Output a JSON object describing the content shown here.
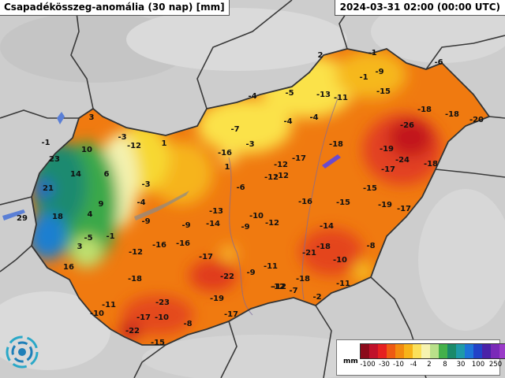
{
  "header": {
    "title": "Csapadékösszeg-anomália (30 nap) [mm]",
    "timestamp": "2024-03-31 02:00 (00:00 UTC)"
  },
  "colors": {
    "background": "#d0d0d0",
    "border": "#555555",
    "lake": "#5a7fd6"
  },
  "map_values": [
    {
      "v": "3"
    },
    {
      "v": "-1"
    },
    {
      "v": "-3"
    },
    {
      "v": "10"
    },
    {
      "v": "23"
    },
    {
      "v": "14"
    },
    {
      "v": "6"
    },
    {
      "v": "21"
    },
    {
      "v": "9"
    },
    {
      "v": "4"
    },
    {
      "v": "18"
    },
    {
      "v": "29"
    },
    {
      "v": "-5"
    },
    {
      "v": "-1"
    },
    {
      "v": "3"
    },
    {
      "v": "16"
    },
    {
      "v": "-12"
    },
    {
      "v": "1"
    },
    {
      "v": "-3"
    },
    {
      "v": "-4"
    },
    {
      "v": "-9"
    },
    {
      "v": "-12"
    },
    {
      "v": "-16"
    },
    {
      "v": "-16"
    },
    {
      "v": "-18"
    },
    {
      "v": "-11"
    },
    {
      "v": "-10"
    },
    {
      "v": "-23"
    },
    {
      "v": "-17"
    },
    {
      "v": "-10"
    },
    {
      "v": "-22"
    },
    {
      "v": "-15"
    },
    {
      "v": "-8"
    },
    {
      "v": "-17"
    },
    {
      "v": "-19"
    },
    {
      "v": "-22"
    },
    {
      "v": "-9"
    },
    {
      "v": "-9"
    },
    {
      "v": "-14"
    },
    {
      "v": "-13"
    },
    {
      "v": "-9"
    },
    {
      "v": "-10"
    },
    {
      "v": "-12"
    },
    {
      "v": "-11"
    },
    {
      "v": "-12"
    },
    {
      "v": "-7"
    },
    {
      "v": "-2"
    },
    {
      "v": "-17"
    },
    {
      "v": "-6"
    },
    {
      "v": "-16"
    },
    {
      "v": "1"
    },
    {
      "v": "-3"
    },
    {
      "v": "-7"
    },
    {
      "v": "-4"
    },
    {
      "v": "-5"
    },
    {
      "v": "-4"
    },
    {
      "v": "-4"
    },
    {
      "v": "-12"
    },
    {
      "v": "-12"
    },
    {
      "v": "-17"
    },
    {
      "v": "-18"
    },
    {
      "v": "2"
    },
    {
      "v": "-1"
    },
    {
      "v": "-1"
    },
    {
      "v": "-9"
    },
    {
      "v": "-6"
    },
    {
      "v": "-13"
    },
    {
      "v": "-11"
    },
    {
      "v": "-15"
    },
    {
      "v": "-18"
    },
    {
      "v": "-18"
    },
    {
      "v": "-20"
    },
    {
      "v": "-26"
    },
    {
      "v": "-19"
    },
    {
      "v": "-24"
    },
    {
      "v": "-18"
    },
    {
      "v": "-17"
    },
    {
      "v": "-15"
    },
    {
      "v": "-19"
    },
    {
      "v": "-17"
    },
    {
      "v": "-16"
    },
    {
      "v": "-15"
    },
    {
      "v": "-14"
    },
    {
      "v": "-18"
    },
    {
      "v": "-21"
    },
    {
      "v": "-10"
    },
    {
      "v": "-8"
    },
    {
      "v": "-11"
    },
    {
      "v": "-18"
    },
    {
      "v": "-12"
    },
    {
      "v": "-12"
    }
  ],
  "legend": {
    "unit": "mm",
    "colors": [
      "#8b0a1a",
      "#c0102a",
      "#e62020",
      "#ee5a12",
      "#f28a0e",
      "#f7b318",
      "#fbe05a",
      "#f6f3b0",
      "#b9e08a",
      "#44b04a",
      "#1a8a6a",
      "#1e9aa8",
      "#1e74d8",
      "#2242c8",
      "#4a22a8",
      "#7a2ab8",
      "#9a3ac8"
    ],
    "ticks": [
      "-100",
      "-30",
      "-10",
      "-4",
      "2",
      "8",
      "30",
      "100",
      "250"
    ]
  }
}
